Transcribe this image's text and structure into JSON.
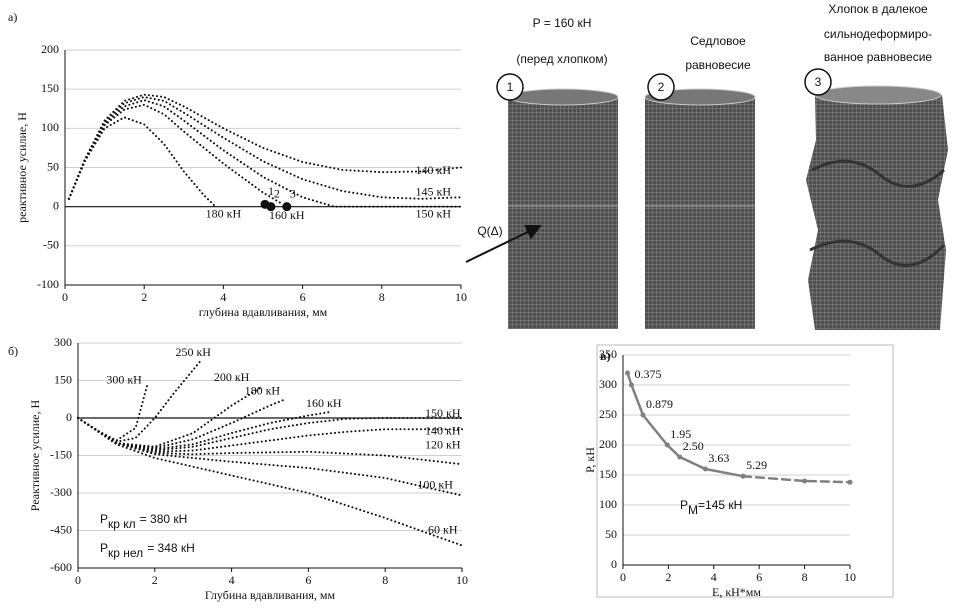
{
  "panel_labels": [
    "а)",
    "б)",
    "в)"
  ],
  "figure": {
    "captions": [
      [
        "P = 160 кН",
        "(перед хлопком)"
      ],
      [
        "Седловое",
        "равновесие"
      ],
      [
        "Хлопок в далекое",
        "сильнодеформиро-",
        "ванное равновесие"
      ]
    ],
    "circled": [
      "1",
      "2",
      "3"
    ],
    "arrow_label": "Q(Δ)"
  },
  "chart_data": [
    {
      "type": "line",
      "xlabel": "глубина вдавливания, мм",
      "ylabel": "реактивное усилие, Н",
      "xlim": [
        0,
        10
      ],
      "ylim": [
        -100,
        200
      ],
      "xticks": [
        0,
        2,
        4,
        6,
        8,
        10
      ],
      "yticks": [
        -100,
        -50,
        0,
        50,
        100,
        150,
        200
      ],
      "grid": true,
      "series": [
        {
          "name": "140 кН",
          "x": [
            0.1,
            0.5,
            1,
            1.5,
            2,
            2.5,
            3,
            4,
            5,
            6,
            7,
            8,
            9,
            10
          ],
          "values": [
            10,
            60,
            110,
            135,
            143,
            140,
            128,
            100,
            75,
            57,
            47,
            44,
            45,
            50
          ]
        },
        {
          "name": "145 кН",
          "x": [
            0.1,
            0.5,
            1,
            1.5,
            2,
            2.5,
            3,
            4,
            5,
            6,
            7,
            8,
            9,
            10
          ],
          "values": [
            10,
            60,
            108,
            132,
            140,
            135,
            120,
            88,
            58,
            35,
            20,
            12,
            10,
            12
          ]
        },
        {
          "name": "150 кН",
          "x": [
            0.1,
            0.5,
            1,
            1.5,
            2,
            2.5,
            3,
            4,
            5,
            6,
            6.8,
            8,
            10
          ],
          "values": [
            10,
            60,
            106,
            128,
            136,
            128,
            110,
            72,
            38,
            12,
            0,
            0,
            0
          ]
        },
        {
          "name": "160 кН",
          "x": [
            0.1,
            0.5,
            1,
            1.5,
            2,
            2.5,
            3,
            4,
            5,
            5.5
          ],
          "values": [
            10,
            58,
            104,
            124,
            130,
            118,
            96,
            55,
            18,
            3
          ]
        },
        {
          "name": "180 кН",
          "x": [
            0.1,
            0.5,
            1,
            1.5,
            2,
            2.5,
            3,
            3.5,
            3.8
          ],
          "values": [
            10,
            58,
            100,
            114,
            105,
            80,
            45,
            15,
            0
          ]
        }
      ],
      "markers": [
        {
          "label": "1",
          "x": 5.05,
          "y": 3
        },
        {
          "label": "2",
          "x": 5.2,
          "y": 0
        },
        {
          "label": "3",
          "x": 5.6,
          "y": 0
        }
      ]
    },
    {
      "type": "line",
      "xlabel": "Глубина вдавливания, мм",
      "ylabel": "Реактивное усилие, Н",
      "xlim": [
        0,
        10
      ],
      "ylim": [
        -600,
        300
      ],
      "xticks": [
        0,
        2,
        4,
        6,
        8,
        10
      ],
      "yticks": [
        -600,
        -450,
        -300,
        -150,
        0,
        150,
        300
      ],
      "grid": true,
      "series": [
        {
          "name": "300 кН",
          "x": [
            0,
            0.5,
            1,
            1.5,
            1.8
          ],
          "values": [
            0,
            -50,
            -90,
            -40,
            130
          ]
        },
        {
          "name": "250 кН",
          "x": [
            0,
            0.5,
            1,
            1.5,
            2,
            2.5,
            3.2
          ],
          "values": [
            0,
            -50,
            -95,
            -80,
            0,
            100,
            230
          ]
        },
        {
          "name": "200 кН",
          "x": [
            0,
            1,
            2,
            3,
            4,
            4.8
          ],
          "values": [
            0,
            -100,
            -115,
            -60,
            50,
            125
          ]
        },
        {
          "name": "180 кН",
          "x": [
            0,
            1,
            2,
            3,
            4,
            5,
            5.4
          ],
          "values": [
            0,
            -100,
            -120,
            -85,
            -20,
            50,
            75
          ]
        },
        {
          "name": "160 кН",
          "x": [
            0,
            1,
            2,
            3,
            4,
            5,
            6,
            6.6
          ],
          "values": [
            0,
            -100,
            -125,
            -105,
            -60,
            -20,
            10,
            25
          ]
        },
        {
          "name": "150 кН",
          "x": [
            0,
            1,
            2,
            3,
            4,
            5,
            6,
            7,
            8,
            10
          ],
          "values": [
            0,
            -100,
            -130,
            -115,
            -80,
            -45,
            -20,
            -3,
            0,
            0
          ]
        },
        {
          "name": "140 кН",
          "x": [
            0,
            1,
            2,
            3,
            4,
            5,
            6,
            7,
            8,
            9,
            10
          ],
          "values": [
            0,
            -100,
            -135,
            -130,
            -110,
            -90,
            -70,
            -55,
            -45,
            -45,
            -45
          ]
        },
        {
          "name": "120 кН",
          "x": [
            0,
            1,
            2,
            3,
            4,
            6,
            8,
            10
          ],
          "values": [
            0,
            -100,
            -140,
            -145,
            -140,
            -135,
            -150,
            -185
          ]
        },
        {
          "name": "100 кН",
          "x": [
            0,
            1,
            2,
            4,
            6,
            8,
            10
          ],
          "values": [
            0,
            -100,
            -145,
            -175,
            -200,
            -240,
            -310
          ]
        },
        {
          "name": "60 кН",
          "x": [
            0,
            1,
            2,
            4,
            6,
            8,
            10
          ],
          "values": [
            0,
            -105,
            -160,
            -230,
            -300,
            -400,
            -510
          ]
        }
      ],
      "annotations": [
        {
          "main": "P",
          "sub": "кр кл",
          "rest": "= 380 кН"
        },
        {
          "main": "P",
          "sub": "кр нел",
          "rest": "= 348 кН"
        }
      ]
    },
    {
      "type": "line",
      "xlabel": "E, кН*мм",
      "ylabel": "P, кН",
      "xlim": [
        0,
        10
      ],
      "ylim": [
        0,
        350
      ],
      "xticks": [
        0,
        2,
        4,
        6,
        8,
        10
      ],
      "yticks": [
        0,
        50,
        100,
        150,
        200,
        250,
        300,
        350
      ],
      "grid": true,
      "series": [
        {
          "color": "#808080",
          "x": [
            0.2,
            0.375,
            0.879,
            1.95,
            2.5,
            3.63,
            5.29
          ],
          "values": [
            320,
            300,
            250,
            200,
            180,
            160,
            148
          ],
          "x_labels": [
            null,
            "0.375",
            "0.879",
            "1.95",
            "2.50",
            "3.63",
            "5.29"
          ]
        },
        {
          "color": "#808080",
          "style": "dashed",
          "x": [
            5.29,
            8,
            10
          ],
          "values": [
            148,
            140,
            138
          ]
        }
      ],
      "annotations": [
        {
          "main": "P",
          "sub": "М",
          "rest": "=145 кН"
        }
      ]
    }
  ]
}
